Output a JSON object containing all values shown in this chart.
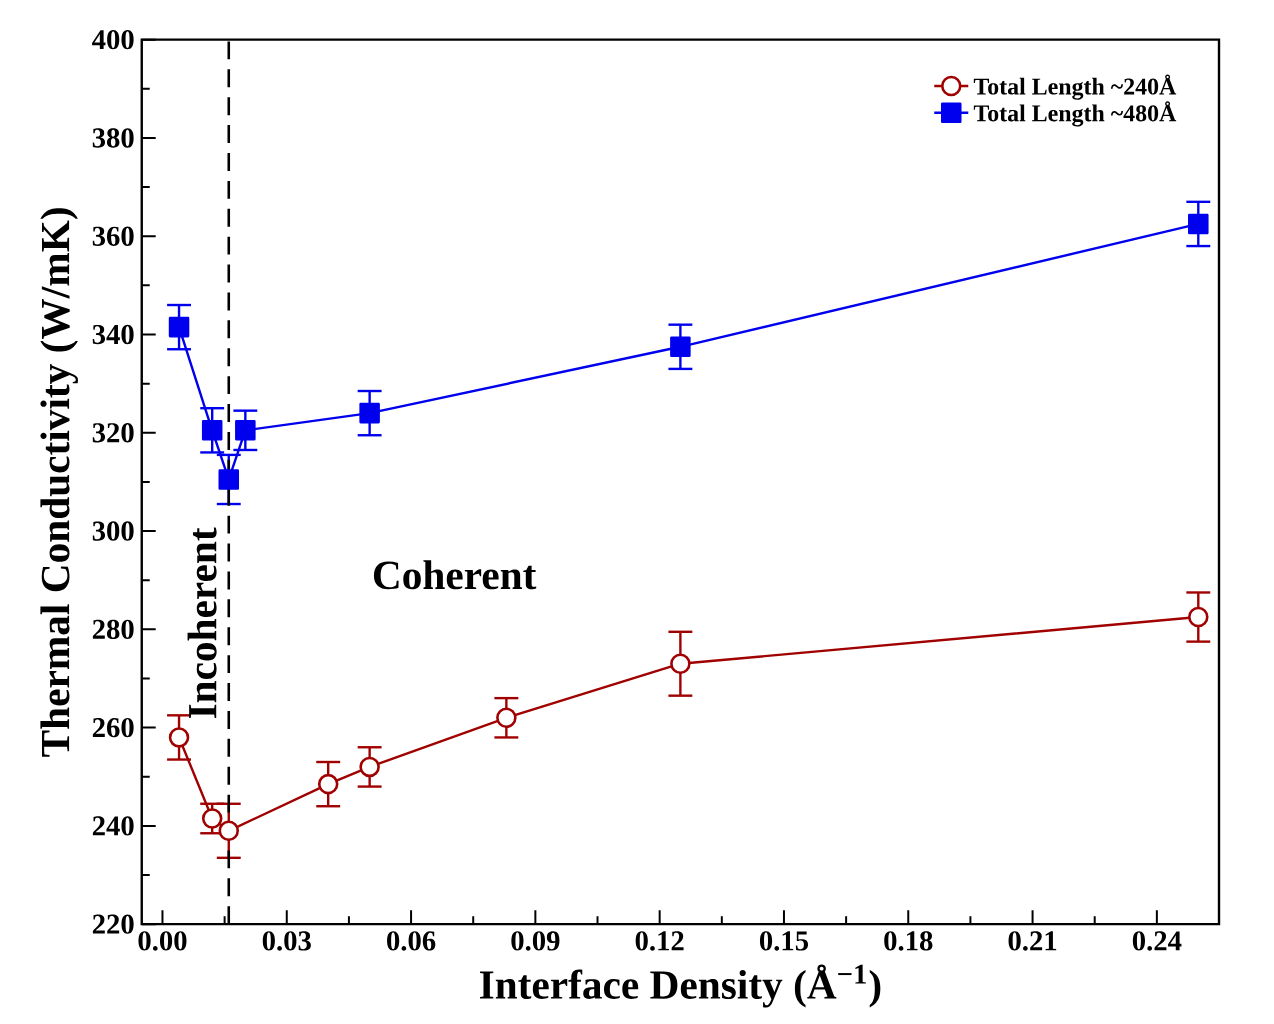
{
  "chart_data": {
    "type": "line",
    "xlabel": "Interface Density (Å$^{−1}$)",
    "ylabel": "Thermal Conductivity (W/mK)",
    "xlim": [
      -0.005,
      0.255
    ],
    "ylim": [
      220,
      400
    ],
    "xticks": [
      {
        "value": 0,
        "label": "0.00"
      },
      {
        "value": 0.03,
        "label": "0.03"
      },
      {
        "value": 0.06,
        "label": "0.06"
      },
      {
        "value": 0.09,
        "label": "0.09"
      },
      {
        "value": 0.12,
        "label": "0.12"
      },
      {
        "value": 0.15,
        "label": "0.15"
      },
      {
        "value": 0.18,
        "label": "0.18"
      },
      {
        "value": 0.21,
        "label": "0.21"
      },
      {
        "value": 0.24,
        "label": "0.24"
      }
    ],
    "yticks": [
      220,
      240,
      260,
      280,
      300,
      320,
      340,
      360,
      380,
      400
    ],
    "series": [
      {
        "name": "Total Length ~240Å",
        "color": "#a00000",
        "marker": "circle",
        "x": [
          0.004,
          0.012,
          0.016,
          0.04,
          0.05,
          0.083,
          0.125,
          0.25
        ],
        "values": [
          258,
          241.5,
          239,
          248.5,
          252,
          262,
          273,
          282.5
        ],
        "errors": [
          4.5,
          3,
          5.5,
          4.5,
          4,
          4,
          6.5,
          5
        ]
      },
      {
        "name": "Total Length ~480Å",
        "color": "#0000ee",
        "marker": "square",
        "x": [
          0.004,
          0.012,
          0.016,
          0.02,
          0.05,
          0.125,
          0.25
        ],
        "values": [
          341.5,
          320.5,
          310.5,
          320.5,
          324,
          337.5,
          362.5
        ],
        "errors": [
          4.5,
          4.5,
          5,
          4,
          4.5,
          4.5,
          4.5
        ]
      }
    ],
    "ref_lines": [
      {
        "axis": "x",
        "value": 0.016,
        "line_style": "dashed",
        "color": "#000000"
      }
    ],
    "annotations": [
      "Coherent",
      "Incoherent"
    ],
    "legend": "top right",
    "line_style": "solid"
  }
}
